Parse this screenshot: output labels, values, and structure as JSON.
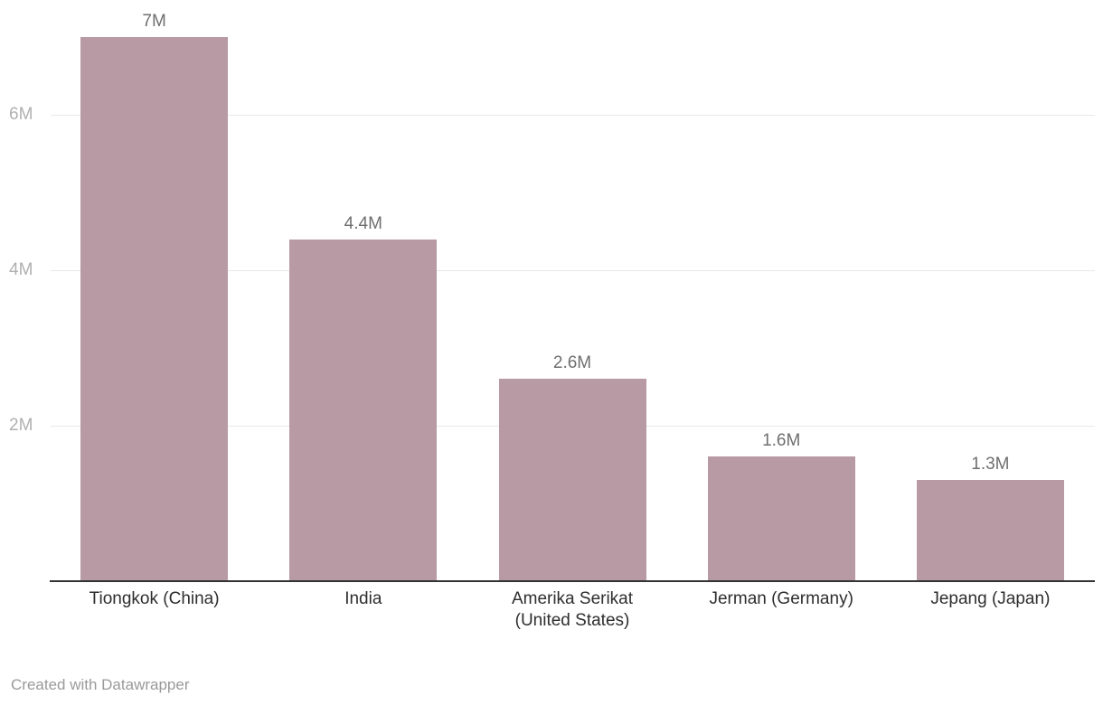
{
  "chart_data": {
    "type": "bar",
    "categories": [
      "Tiongkok (China)",
      "India",
      "Amerika Serikat (United States)",
      "Jerman (Germany)",
      "Jepang (Japan)"
    ],
    "values": [
      7,
      4.4,
      2.6,
      1.6,
      1.3
    ],
    "value_labels": [
      "7M",
      "4.4M",
      "2.6M",
      "1.6M",
      "1.3M"
    ],
    "y_ticks": [
      {
        "value": 2,
        "label": "2M"
      },
      {
        "value": 4,
        "label": "4M"
      },
      {
        "value": 6,
        "label": "6M"
      }
    ],
    "ylim": [
      0,
      7.5
    ],
    "grid": "horizontal",
    "legend": "none",
    "title": "",
    "xlabel": "",
    "ylabel": ""
  },
  "colors": {
    "bar": "#b79aa4",
    "gridline": "#e8e8e8",
    "axis_line": "#333333",
    "y_tick_text": "#b0b0b0",
    "value_label_text": "#6f6f6f",
    "category_text": "#2e2e2e",
    "credit_text": "#9a9a9a",
    "background": "#ffffff"
  },
  "footer": {
    "credit": "Created with Datawrapper"
  }
}
